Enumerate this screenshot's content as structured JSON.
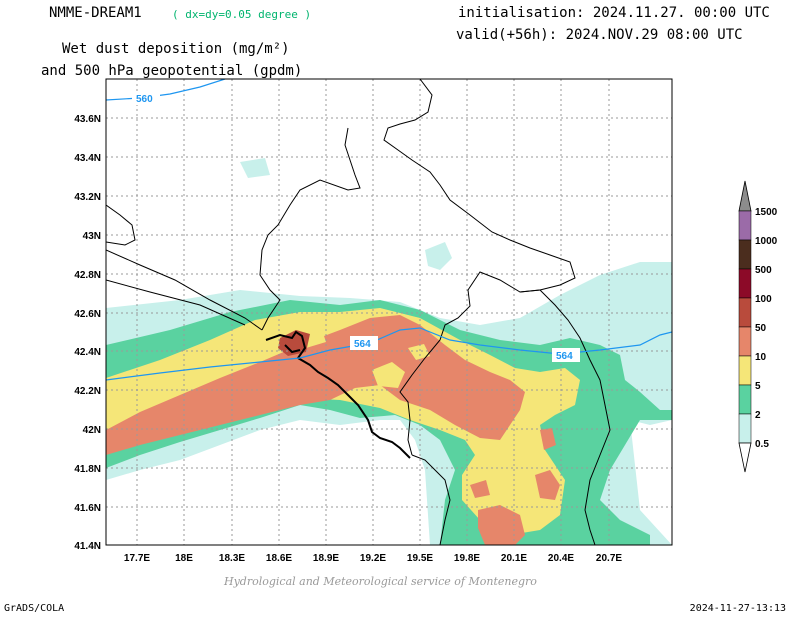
{
  "header": {
    "model": "NMME-DREAM1",
    "resolution": "( dx=dy=0.05 degree )",
    "initialisation": "initialisation: 2024.11.27. 00:00 UTC",
    "valid": "valid(+56h): 2024.NOV.29 08:00 UTC",
    "title_line1": "Wet dust deposition (mg/m²)",
    "title_line2": "and 500 hPa geopotential (gpdm)"
  },
  "map": {
    "lat_labels": [
      "43.6N",
      "43.4N",
      "43.2N",
      "43N",
      "42.8N",
      "42.6N",
      "42.4N",
      "42.2N",
      "42N",
      "41.8N",
      "41.6N",
      "41.4N"
    ],
    "lon_labels": [
      "17.7E",
      "18E",
      "18.3E",
      "18.6E",
      "18.9E",
      "19.2E",
      "19.5E",
      "19.8E",
      "20.1E",
      "20.4E",
      "20.7E"
    ],
    "contour_labels": [
      "560",
      "564",
      "564"
    ],
    "contour_color": "#1e96f0",
    "grid": true
  },
  "legend": {
    "levels": [
      {
        "label": "1500",
        "color": "#8c8c8c"
      },
      {
        "label": "1000",
        "color": "#9b6ba8"
      },
      {
        "label": "500",
        "color": "#4b2d1e"
      },
      {
        "label": "100",
        "color": "#8c0a28"
      },
      {
        "label": "50",
        "color": "#b94b3c"
      },
      {
        "label": "10",
        "color": "#e6866a"
      },
      {
        "label": "5",
        "color": "#f5e678"
      },
      {
        "label": "2",
        "color": "#5ad2a0"
      },
      {
        "label": "0.5",
        "color": "#c8f0eb"
      }
    ]
  },
  "footer": {
    "credit": "Hydrological and Meteorological service of Montenegro",
    "left": "GrADS/COLA",
    "right": "2024-11-27-13:13"
  }
}
